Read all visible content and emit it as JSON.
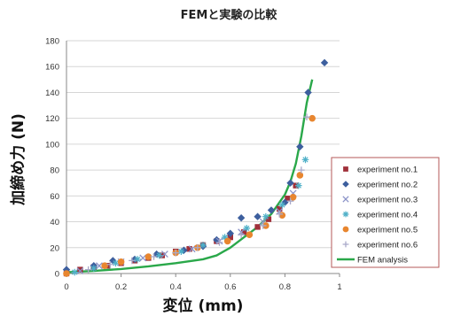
{
  "chart_data": {
    "type": "scatter",
    "title": "FEMと実験の比較",
    "xlabel": "変位 (mm)",
    "ylabel": "加締め力 (N)",
    "xlim": [
      0,
      1
    ],
    "ylim": [
      0,
      180
    ],
    "xticks": [
      "0",
      "0.2",
      "0.4",
      "0.6",
      "0.8",
      "1"
    ],
    "yticks": [
      "0",
      "20",
      "40",
      "60",
      "80",
      "100",
      "120",
      "140",
      "160",
      "180"
    ],
    "grid": "horizontal",
    "legend_position": "right",
    "series": [
      {
        "name": "experiment no.1",
        "marker": "square",
        "color": "#a0303a",
        "points": [
          [
            0,
            0
          ],
          [
            0.05,
            3
          ],
          [
            0.1,
            5
          ],
          [
            0.15,
            6
          ],
          [
            0.2,
            8
          ],
          [
            0.25,
            10
          ],
          [
            0.3,
            12
          ],
          [
            0.35,
            14
          ],
          [
            0.4,
            17
          ],
          [
            0.45,
            19
          ],
          [
            0.5,
            22
          ],
          [
            0.55,
            25
          ],
          [
            0.6,
            28
          ],
          [
            0.65,
            32
          ],
          [
            0.7,
            36
          ],
          [
            0.74,
            42
          ],
          [
            0.78,
            50
          ],
          [
            0.81,
            58
          ],
          [
            0.84,
            68
          ]
        ]
      },
      {
        "name": "experiment no.2",
        "marker": "diamond",
        "color": "#3d5f9e",
        "points": [
          [
            0,
            3
          ],
          [
            0.1,
            6
          ],
          [
            0.17,
            10
          ],
          [
            0.25,
            11
          ],
          [
            0.33,
            15
          ],
          [
            0.43,
            18
          ],
          [
            0.5,
            21
          ],
          [
            0.55,
            26
          ],
          [
            0.6,
            31
          ],
          [
            0.64,
            43
          ],
          [
            0.7,
            44
          ],
          [
            0.75,
            49
          ],
          [
            0.8,
            55
          ],
          [
            0.82,
            70
          ],
          [
            0.855,
            98
          ],
          [
            0.885,
            140
          ],
          [
            0.945,
            163
          ]
        ]
      },
      {
        "name": "experiment no.3",
        "marker": "x",
        "color": "#8b93c8",
        "points": [
          [
            0.05,
            2
          ],
          [
            0.12,
            6
          ],
          [
            0.2,
            9
          ],
          [
            0.28,
            12
          ],
          [
            0.36,
            15
          ],
          [
            0.46,
            19
          ],
          [
            0.56,
            25
          ],
          [
            0.64,
            32
          ],
          [
            0.72,
            40
          ],
          [
            0.78,
            48
          ],
          [
            0.83,
            62
          ]
        ]
      },
      {
        "name": "experiment no.4",
        "marker": "star",
        "color": "#4fb0c8",
        "points": [
          [
            0.03,
            1
          ],
          [
            0.1,
            4
          ],
          [
            0.18,
            8
          ],
          [
            0.26,
            11
          ],
          [
            0.34,
            14
          ],
          [
            0.42,
            17
          ],
          [
            0.5,
            22
          ],
          [
            0.58,
            28
          ],
          [
            0.66,
            35
          ],
          [
            0.73,
            44
          ],
          [
            0.79,
            53
          ],
          [
            0.85,
            68
          ],
          [
            0.875,
            88
          ]
        ]
      },
      {
        "name": "experiment no.5",
        "marker": "circle",
        "color": "#e8862f",
        "points": [
          [
            0,
            0
          ],
          [
            0.14,
            6
          ],
          [
            0.2,
            9
          ],
          [
            0.3,
            13
          ],
          [
            0.4,
            16
          ],
          [
            0.48,
            20
          ],
          [
            0.59,
            25
          ],
          [
            0.67,
            30
          ],
          [
            0.73,
            37
          ],
          [
            0.79,
            45
          ],
          [
            0.83,
            59
          ],
          [
            0.855,
            76
          ],
          [
            0.9,
            120
          ]
        ]
      },
      {
        "name": "experiment no.6",
        "marker": "plus",
        "color": "#a9a9c9",
        "points": [
          [
            0.08,
            3
          ],
          [
            0.16,
            7
          ],
          [
            0.24,
            10
          ],
          [
            0.32,
            13
          ],
          [
            0.4,
            16
          ],
          [
            0.48,
            20
          ],
          [
            0.56,
            24
          ],
          [
            0.64,
            30
          ],
          [
            0.72,
            37
          ],
          [
            0.78,
            46
          ],
          [
            0.82,
            56
          ],
          [
            0.86,
            80
          ],
          [
            0.88,
            121
          ]
        ]
      }
    ],
    "fem": {
      "name": "FEM analysis",
      "color": "#2aa84a",
      "points": [
        [
          0,
          1
        ],
        [
          0.1,
          2
        ],
        [
          0.2,
          3.5
        ],
        [
          0.3,
          5.5
        ],
        [
          0.4,
          8
        ],
        [
          0.5,
          11
        ],
        [
          0.55,
          14
        ],
        [
          0.6,
          20
        ],
        [
          0.65,
          28
        ],
        [
          0.7,
          36
        ],
        [
          0.75,
          46
        ],
        [
          0.8,
          61
        ],
        [
          0.82,
          71
        ],
        [
          0.84,
          85
        ],
        [
          0.86,
          106
        ],
        [
          0.88,
          132
        ],
        [
          0.9,
          150
        ]
      ]
    }
  }
}
